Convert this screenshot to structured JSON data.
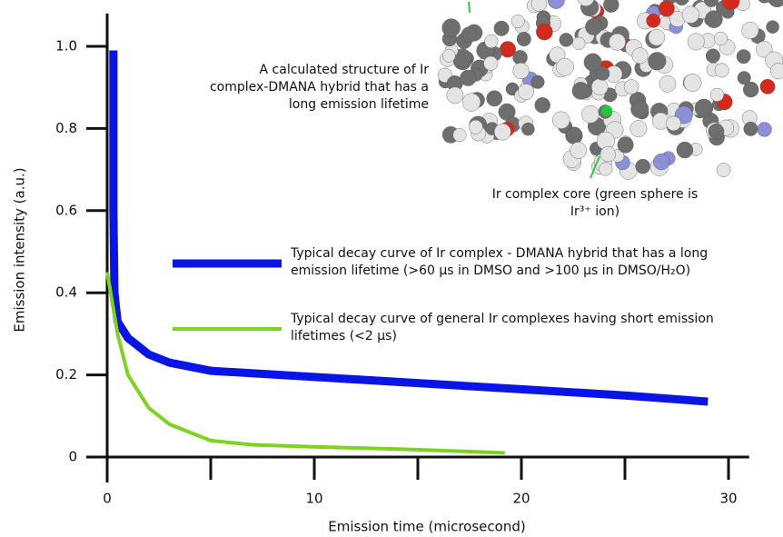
{
  "chart_data": {
    "type": "line",
    "x_label": "Emission time (microsecond)",
    "y_label": "Emission intensity (a.u.)",
    "xlim": [
      -1,
      31
    ],
    "ylim": [
      0,
      1.08
    ],
    "xticks": [
      0,
      10,
      20,
      30
    ],
    "xminor_ticks": [
      5,
      15,
      25
    ],
    "yticks": [
      0,
      0.2,
      0.4,
      0.6,
      0.8,
      {
        "value": 1,
        "label": "1.0"
      }
    ],
    "series": [
      {
        "name": "Typical decay curve of Ir complex - DMANA hybrid that has a long emission lifetime (>60 μs in DMSO and >100 μs in DMSO/H₂O)",
        "color": "#0a14e6",
        "x": [
          0.3,
          0.3,
          0.35,
          0.5,
          1,
          2,
          3,
          5,
          10,
          15,
          20,
          25,
          29
        ],
        "values": [
          0.99,
          0.6,
          0.4,
          0.33,
          0.29,
          0.25,
          0.23,
          0.21,
          0.195,
          0.18,
          0.165,
          0.15,
          0.135
        ]
      },
      {
        "name": "Typical decay curve of general Ir complexes having short emission lifetimes (<2 μs)",
        "color": "#7ed321",
        "x": [
          0,
          0.5,
          1,
          2,
          3,
          5,
          7,
          10,
          15,
          19.2
        ],
        "values": [
          0.45,
          0.3,
          0.2,
          0.12,
          0.08,
          0.04,
          0.03,
          0.025,
          0.018,
          0.01
        ]
      }
    ],
    "annotations": [
      "A calculated structure of Ir complex-DMANA hybrid that has a long emission lifetime",
      "Ir complex core (green sphere is Ir³⁺ ion)"
    ]
  }
}
